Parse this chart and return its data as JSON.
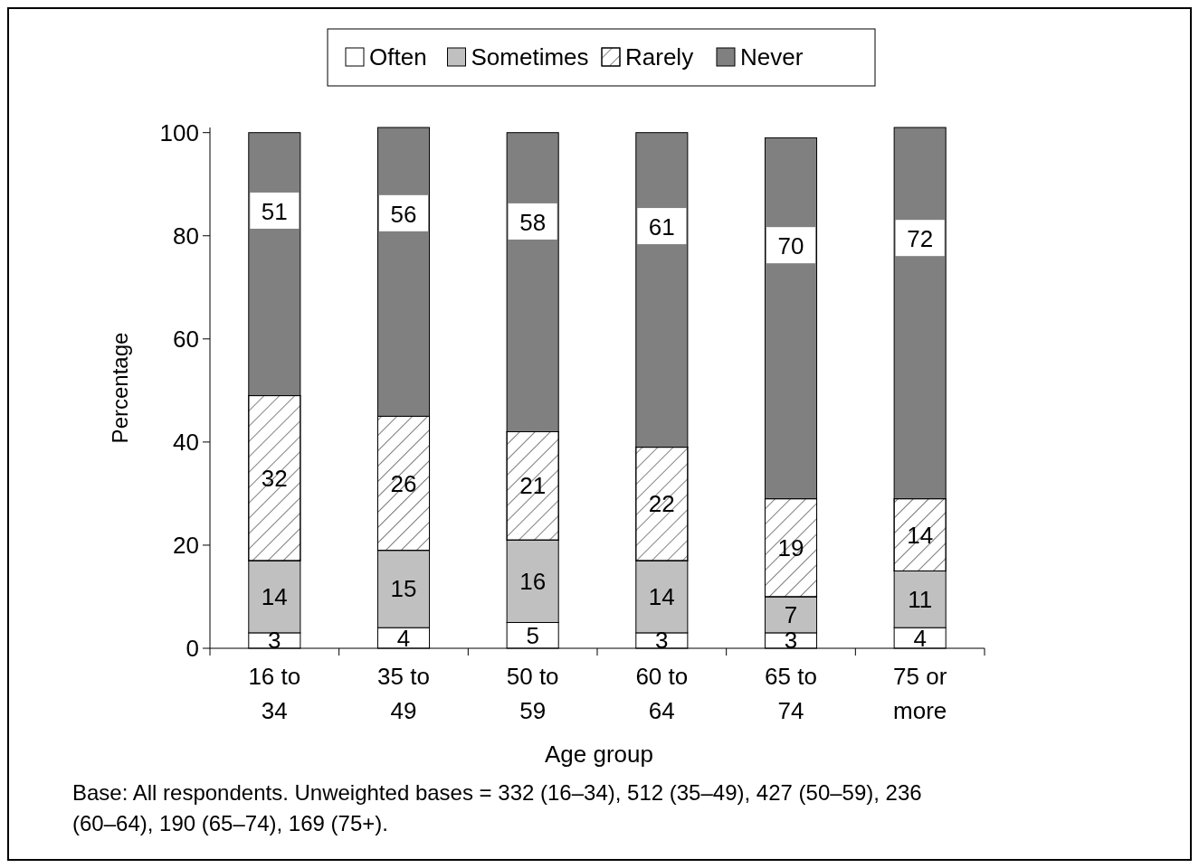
{
  "chart_data": {
    "type": "bar",
    "stacked": true,
    "xlabel": "Age group",
    "ylabel": "Percentage",
    "categories": [
      "16 to 34",
      "35 to 49",
      "50 to 59",
      "60 to 64",
      "65 to 74",
      "75 or more"
    ],
    "series": [
      {
        "name": "Often",
        "color": "#ffffff",
        "values": [
          3,
          4,
          5,
          3,
          3,
          4
        ]
      },
      {
        "name": "Sometimes",
        "color": "#c0c0c0",
        "values": [
          14,
          15,
          16,
          14,
          7,
          11
        ]
      },
      {
        "name": "Rarely",
        "color": "#ffffff",
        "values": [
          32,
          26,
          21,
          22,
          19,
          14
        ]
      },
      {
        "name": "Never",
        "color": "#808080",
        "values": [
          51,
          56,
          58,
          61,
          70,
          72
        ]
      }
    ],
    "ylim": [
      0,
      101
    ],
    "yticks": [
      0,
      20,
      40,
      60,
      80,
      100
    ],
    "data_labels": true,
    "legend": "top",
    "annotations": [
      "Base: All respondents. Unweighted bases = 332 (16–34), 512 (35–49), 427 (50–59), 236 (60–64), 190 (65–74), 169 (75+)."
    ]
  }
}
